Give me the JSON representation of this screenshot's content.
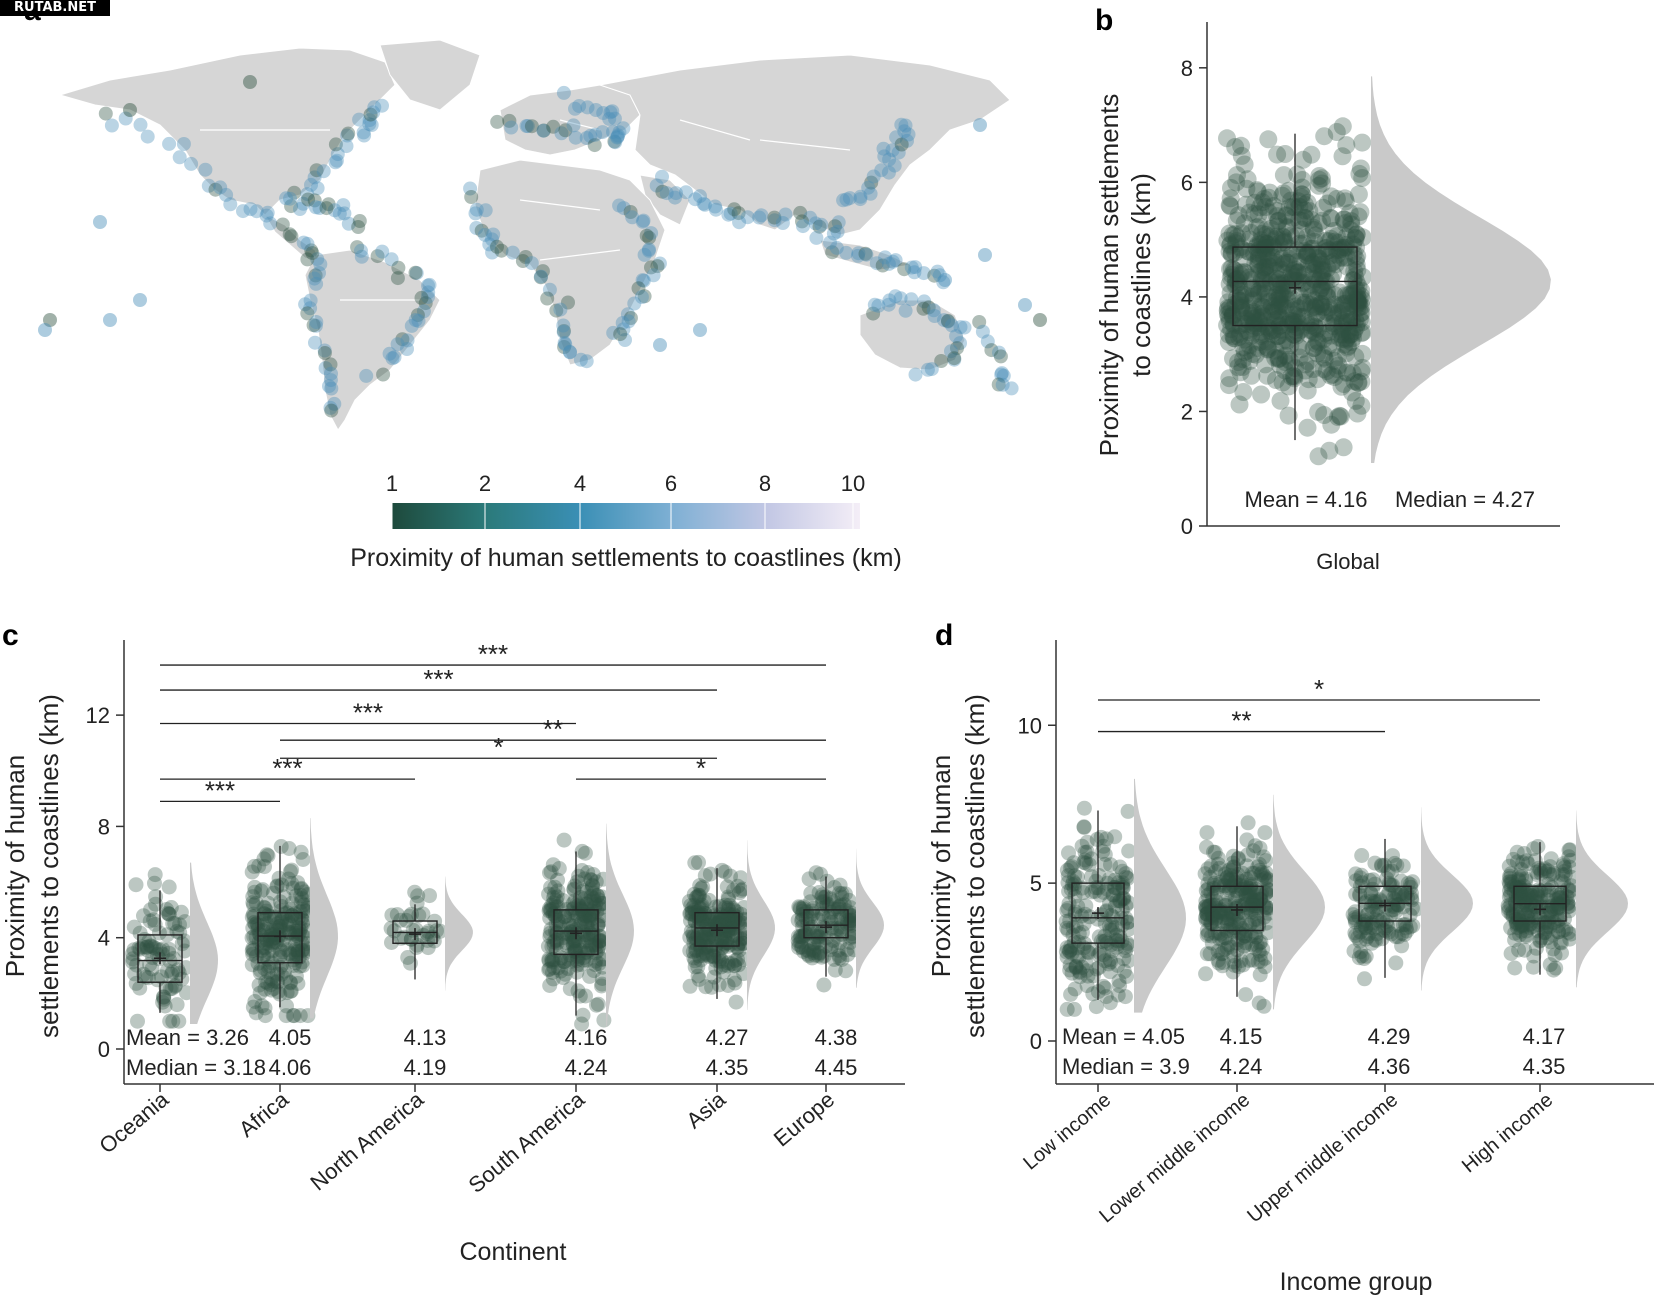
{
  "watermark": "RUTAB.NET",
  "colors": {
    "point_dark": "#2e5141",
    "point_blue": "#4a8fb8",
    "density_fill": "#c9c9c9",
    "land": "#d6d6d6",
    "axis": "#333333"
  },
  "panels": {
    "a": {
      "letter": "a"
    },
    "b": {
      "letter": "b"
    },
    "c": {
      "letter": "c"
    },
    "d": {
      "letter": "d"
    }
  },
  "chart_data": [
    {
      "id": "a",
      "type": "scatter",
      "description_kind": "map",
      "colorbar": {
        "label": "Proximity of human settlements to coastlines (km)",
        "ticks": [
          "1",
          "2",
          "4",
          "6",
          "8",
          "10"
        ],
        "range": [
          1,
          10
        ],
        "colors": [
          "#1e4a3c",
          "#2b7a7a",
          "#3a8fb5",
          "#7fb0d4",
          "#c2c7e4",
          "#f4eef7"
        ]
      }
    },
    {
      "id": "b",
      "type": "box",
      "xlabel": "Global",
      "ylabel": "Proximity of human settlements to coastlines (km)",
      "ylim": [
        0,
        8.8
      ],
      "yticks": [
        0,
        2,
        4,
        6,
        8
      ],
      "categories": [
        "Global"
      ],
      "box": {
        "q1": 3.5,
        "median": 4.27,
        "q3": 4.87,
        "whisker_low": 1.5,
        "whisker_high": 6.85,
        "mean": 4.16
      },
      "annotations": {
        "mean_text": "Mean = 4.16",
        "median_text": "Median = 4.27"
      }
    },
    {
      "id": "c",
      "type": "box",
      "xlabel": "Continent",
      "ylabel": "Proximity of human settlements to coastlines (km)",
      "ylim": [
        0,
        14.7
      ],
      "yticks": [
        0,
        4,
        8,
        12
      ],
      "categories": [
        "Oceania",
        "Africa",
        "North America",
        "South America",
        "Asia",
        "Europe"
      ],
      "mean_labels": [
        "Mean = 3.26",
        "4.05",
        "4.13",
        "4.16",
        "4.27",
        "4.38"
      ],
      "median_labels": [
        "Median = 3.18",
        "4.06",
        "4.19",
        "4.24",
        "4.35",
        "4.45"
      ],
      "boxes": [
        {
          "q1": 2.4,
          "median": 3.18,
          "q3": 4.1,
          "whisker_low": 1.3,
          "whisker_high": 5.7,
          "mean": 3.26
        },
        {
          "q1": 3.1,
          "median": 4.06,
          "q3": 4.9,
          "whisker_low": 1.5,
          "whisker_high": 7.3,
          "mean": 4.05
        },
        {
          "q1": 3.8,
          "median": 4.19,
          "q3": 4.6,
          "whisker_low": 2.5,
          "whisker_high": 5.2,
          "mean": 4.13
        },
        {
          "q1": 3.4,
          "median": 4.24,
          "q3": 5.0,
          "whisker_low": 1.2,
          "whisker_high": 7.1,
          "mean": 4.16
        },
        {
          "q1": 3.7,
          "median": 4.35,
          "q3": 4.9,
          "whisker_low": 1.8,
          "whisker_high": 6.5,
          "mean": 4.27
        },
        {
          "q1": 4.0,
          "median": 4.45,
          "q3": 5.0,
          "whisker_low": 2.6,
          "whisker_high": 6.2,
          "mean": 4.38
        }
      ],
      "significance": [
        {
          "from": 0,
          "to": 5,
          "y": 13.8,
          "label": "***"
        },
        {
          "from": 0,
          "to": 4,
          "y": 12.9,
          "label": "***"
        },
        {
          "from": 0,
          "to": 3,
          "y": 11.7,
          "label": "***"
        },
        {
          "from": 1,
          "to": 5,
          "y": 11.1,
          "label": "**"
        },
        {
          "from": 1,
          "to": 4,
          "y": 10.45,
          "label": "*"
        },
        {
          "from": 0,
          "to": 2,
          "y": 9.7,
          "label": "***"
        },
        {
          "from": 3,
          "to": 5,
          "y": 9.7,
          "label": "*"
        },
        {
          "from": 0,
          "to": 1,
          "y": 8.9,
          "label": "***"
        }
      ]
    },
    {
      "id": "d",
      "type": "box",
      "xlabel": "Income group",
      "ylabel": "Proximity of human settlements to coastlines (km)",
      "ylim": [
        0,
        12.7
      ],
      "yticks": [
        0,
        5,
        10
      ],
      "categories": [
        "Low income",
        "Lower middle income",
        "Upper middle income",
        "High income"
      ],
      "mean_labels": [
        "Mean = 4.05",
        "4.15",
        "4.29",
        "4.17"
      ],
      "median_labels": [
        "Median = 3.9",
        "4.24",
        "4.36",
        "4.35"
      ],
      "boxes": [
        {
          "q1": 3.1,
          "median": 3.9,
          "q3": 5.0,
          "whisker_low": 1.3,
          "whisker_high": 7.3,
          "mean": 4.05
        },
        {
          "q1": 3.5,
          "median": 4.24,
          "q3": 4.9,
          "whisker_low": 1.4,
          "whisker_high": 6.8,
          "mean": 4.15
        },
        {
          "q1": 3.8,
          "median": 4.36,
          "q3": 4.9,
          "whisker_low": 2.0,
          "whisker_high": 6.4,
          "mean": 4.29
        },
        {
          "q1": 3.8,
          "median": 4.35,
          "q3": 4.9,
          "whisker_low": 2.1,
          "whisker_high": 6.3,
          "mean": 4.17
        }
      ],
      "significance": [
        {
          "from": 0,
          "to": 3,
          "y": 10.8,
          "label": "*"
        },
        {
          "from": 0,
          "to": 2,
          "y": 9.8,
          "label": "**"
        }
      ]
    }
  ]
}
